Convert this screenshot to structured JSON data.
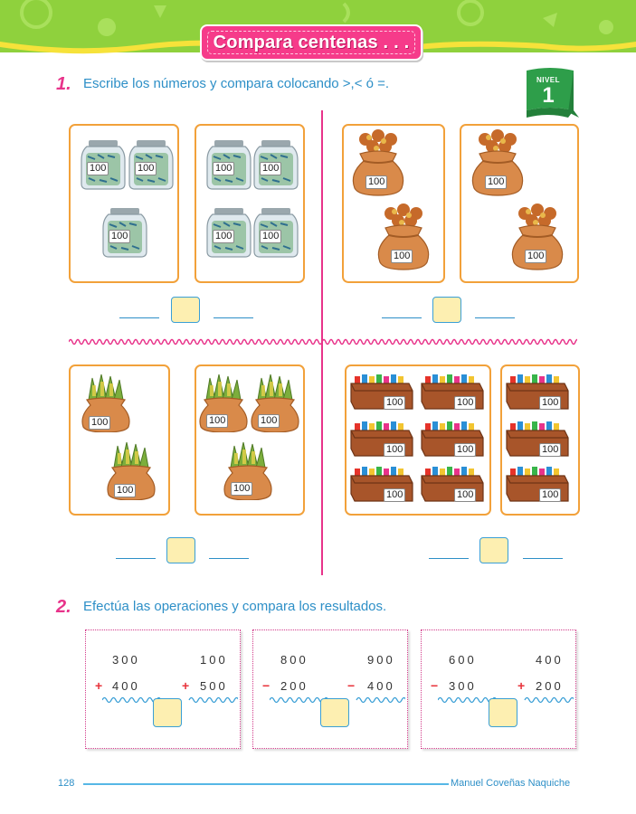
{
  "header": {
    "title": "Compara centenas . . .",
    "level_label": "NIVEL",
    "level_number": "1"
  },
  "exercise1": {
    "number": "1.",
    "instruction": "Escribe los números y compara colocando >,< ó =."
  },
  "exercise2": {
    "number": "2.",
    "instruction": "Efectúa las operaciones y compara los resultados."
  },
  "item_label": "100",
  "operations": [
    {
      "left": {
        "top": "300",
        "sign": "+",
        "bottom": "400"
      },
      "right": {
        "top": "100",
        "sign": "+",
        "bottom": "500"
      }
    },
    {
      "left": {
        "top": "800",
        "sign": "−",
        "bottom": "200"
      },
      "right": {
        "top": "900",
        "sign": "−",
        "bottom": "400"
      }
    },
    {
      "left": {
        "top": "600",
        "sign": "−",
        "bottom": "300"
      },
      "right": {
        "top": "400",
        "sign": "+",
        "bottom": "200"
      }
    }
  ],
  "footer": {
    "page_number": "128",
    "author": "Manuel Coveñas Naquiche"
  },
  "colors": {
    "banner_green": "#8fd13d",
    "title_pink": "#f63b8a",
    "instruction_blue": "#2d8fc7",
    "box_orange": "#f2a13a",
    "answer_box_yellow": "#fdefb1"
  }
}
